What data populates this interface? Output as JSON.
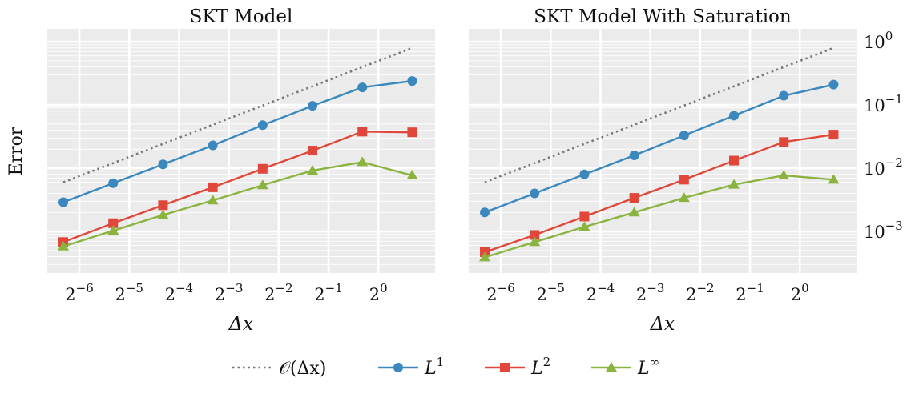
{
  "chart_data": [
    {
      "type": "line",
      "title": "SKT Model",
      "xlabel": "Δx",
      "ylabel": "Error",
      "x": [
        0.0125,
        0.025,
        0.05,
        0.1,
        0.2,
        0.4,
        0.8,
        1.6
      ],
      "x_scale": "log2",
      "y_scale": "log10",
      "xlim": [
        0.01,
        2.2
      ],
      "ylim": [
        0.00022,
        1.6
      ],
      "xticks": [
        {
          "value": 0.015625,
          "base": "2",
          "exp": "−6"
        },
        {
          "value": 0.03125,
          "base": "2",
          "exp": "−5"
        },
        {
          "value": 0.0625,
          "base": "2",
          "exp": "−4"
        },
        {
          "value": 0.125,
          "base": "2",
          "exp": "−3"
        },
        {
          "value": 0.25,
          "base": "2",
          "exp": "−2"
        },
        {
          "value": 0.5,
          "base": "2",
          "exp": "−1"
        },
        {
          "value": 1,
          "base": "2",
          "exp": "0"
        }
      ],
      "series": [
        {
          "name": "O(Δx)",
          "style": "dotted",
          "x": [
            0.0125,
            1.6
          ],
          "values": [
            0.006,
            0.8
          ]
        },
        {
          "name": "L1",
          "marker": "circle",
          "values": [
            0.0029,
            0.0058,
            0.0115,
            0.023,
            0.048,
            0.097,
            0.19,
            0.24
          ]
        },
        {
          "name": "L2",
          "marker": "square",
          "values": [
            0.00068,
            0.00135,
            0.0026,
            0.005,
            0.0098,
            0.019,
            0.038,
            0.037
          ]
        },
        {
          "name": "L∞",
          "marker": "triangle",
          "values": [
            0.00058,
            0.00103,
            0.00182,
            0.0031,
            0.0054,
            0.0092,
            0.0125,
            0.0077
          ]
        }
      ]
    },
    {
      "type": "line",
      "title": "SKT Model With Saturation",
      "xlabel": "Δx",
      "x": [
        0.0125,
        0.025,
        0.05,
        0.1,
        0.2,
        0.4,
        0.8,
        1.6
      ],
      "x_scale": "log2",
      "y_scale": "log10",
      "xlim": [
        0.01,
        2.2
      ],
      "ylim": [
        0.00022,
        1.6
      ],
      "xticks": [
        {
          "value": 0.015625,
          "base": "2",
          "exp": "−6"
        },
        {
          "value": 0.03125,
          "base": "2",
          "exp": "−5"
        },
        {
          "value": 0.0625,
          "base": "2",
          "exp": "−4"
        },
        {
          "value": 0.125,
          "base": "2",
          "exp": "−3"
        },
        {
          "value": 0.25,
          "base": "2",
          "exp": "−2"
        },
        {
          "value": 0.5,
          "base": "2",
          "exp": "−1"
        },
        {
          "value": 1,
          "base": "2",
          "exp": "0"
        }
      ],
      "yticks": [
        {
          "value": 1,
          "base": "10",
          "exp": "0"
        },
        {
          "value": 0.1,
          "base": "10",
          "exp": "−1"
        },
        {
          "value": 0.01,
          "base": "10",
          "exp": "−2"
        },
        {
          "value": 0.001,
          "base": "10",
          "exp": "−3"
        }
      ],
      "series": [
        {
          "name": "O(Δx)",
          "style": "dotted",
          "x": [
            0.0125,
            1.6
          ],
          "values": [
            0.006,
            0.8
          ]
        },
        {
          "name": "L1",
          "marker": "circle",
          "values": [
            0.002,
            0.004,
            0.008,
            0.016,
            0.033,
            0.068,
            0.14,
            0.21
          ]
        },
        {
          "name": "L2",
          "marker": "square",
          "values": [
            0.00047,
            0.00088,
            0.00172,
            0.0034,
            0.0066,
            0.0132,
            0.026,
            0.034
          ]
        },
        {
          "name": "L∞",
          "marker": "triangle",
          "values": [
            0.00039,
            0.00068,
            0.00118,
            0.002,
            0.0034,
            0.0055,
            0.0077,
            0.0066
          ]
        }
      ]
    }
  ],
  "legend": [
    {
      "label": "𝒪(Δx)",
      "color": "#777777",
      "marker": "none",
      "style": "dotted"
    },
    {
      "label": "L",
      "sup": "1",
      "color": "#3a88bd",
      "marker": "circle",
      "style": "solid"
    },
    {
      "label": "L",
      "sup": "2",
      "color": "#e0473a",
      "marker": "square",
      "style": "solid"
    },
    {
      "label": "L",
      "sup": "∞",
      "color": "#8ab33f",
      "marker": "triangle",
      "style": "solid"
    }
  ],
  "colors": {
    "O(Δx)": "#777777",
    "L1": "#3a88bd",
    "L2": "#e0473a",
    "L∞": "#8ab33f",
    "panel_bg": "#ebebeb",
    "grid": "#ffffff"
  }
}
